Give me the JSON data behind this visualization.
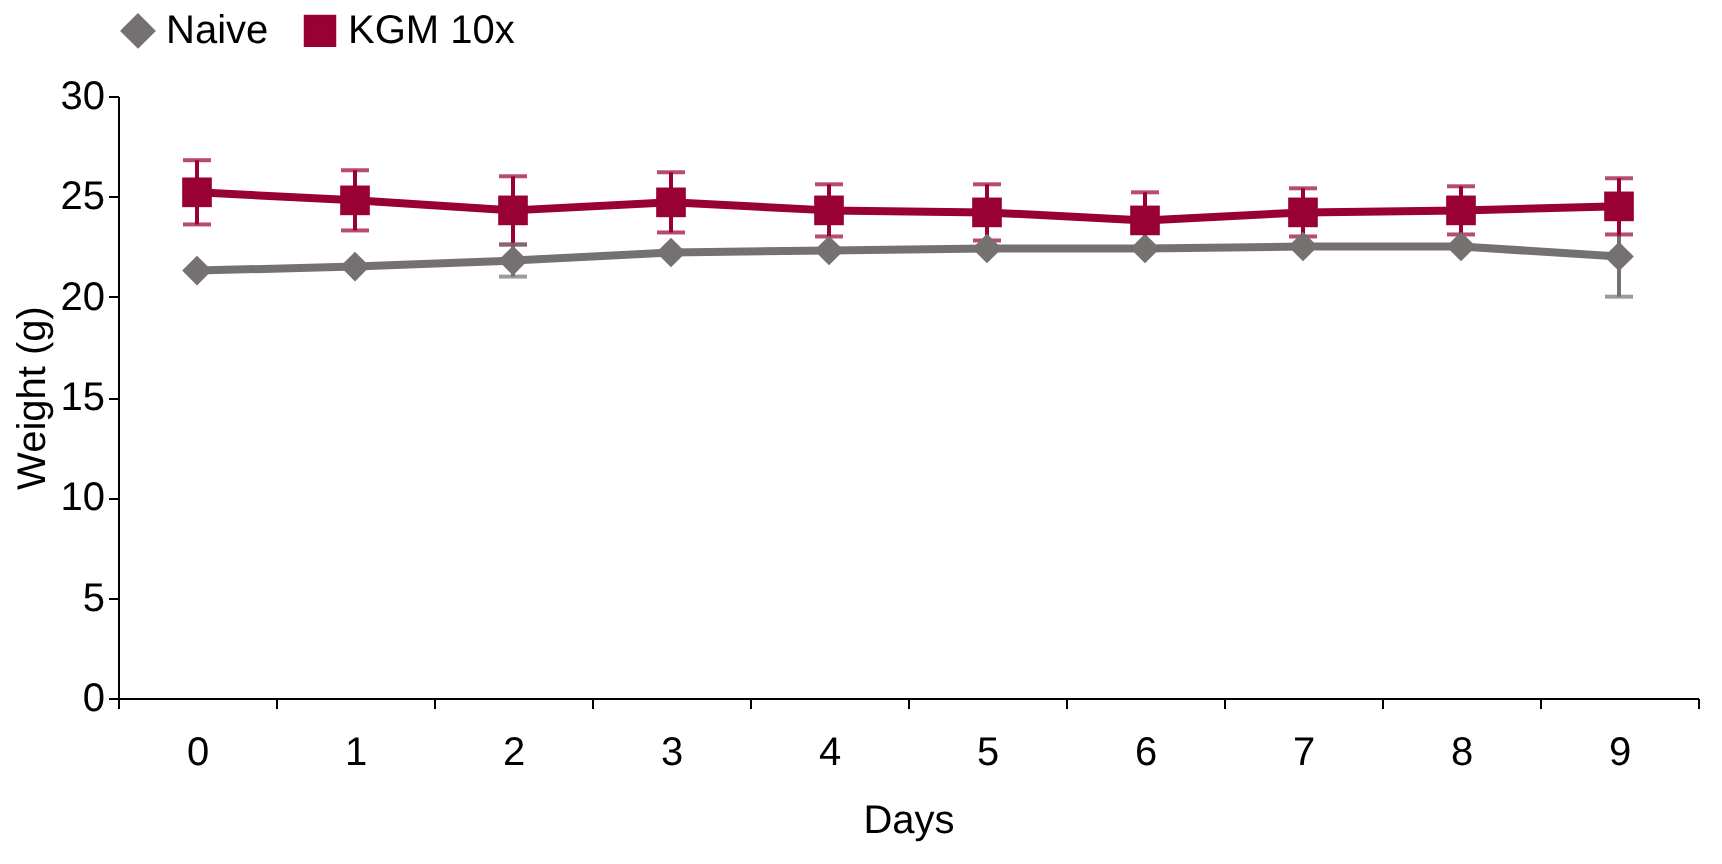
{
  "chart_data": {
    "type": "line",
    "xlabel": "Days",
    "ylabel": "Weight (g)",
    "categories": [
      "0",
      "1",
      "2",
      "3",
      "4",
      "5",
      "6",
      "7",
      "8",
      "9"
    ],
    "series": [
      {
        "name": "Naive",
        "color": "#767171",
        "marker": "diamond",
        "values": [
          21.3,
          21.5,
          21.8,
          22.2,
          22.3,
          22.4,
          22.4,
          22.5,
          22.5,
          22.0
        ],
        "errors": [
          null,
          null,
          0.8,
          null,
          null,
          null,
          null,
          null,
          null,
          2.0
        ]
      },
      {
        "name": "KGM 10x",
        "color": "#990033",
        "marker": "square",
        "values": [
          25.2,
          24.8,
          24.3,
          24.7,
          24.3,
          24.2,
          23.8,
          24.2,
          24.3,
          24.5
        ],
        "errors": [
          1.6,
          1.5,
          1.7,
          1.5,
          1.3,
          1.4,
          1.4,
          1.2,
          1.2,
          1.4
        ]
      }
    ],
    "ylim": [
      0,
      30
    ],
    "yticks": [
      0,
      5,
      10,
      15,
      20,
      25,
      30
    ],
    "grid": false,
    "legend": "top",
    "line_style": "solid"
  }
}
